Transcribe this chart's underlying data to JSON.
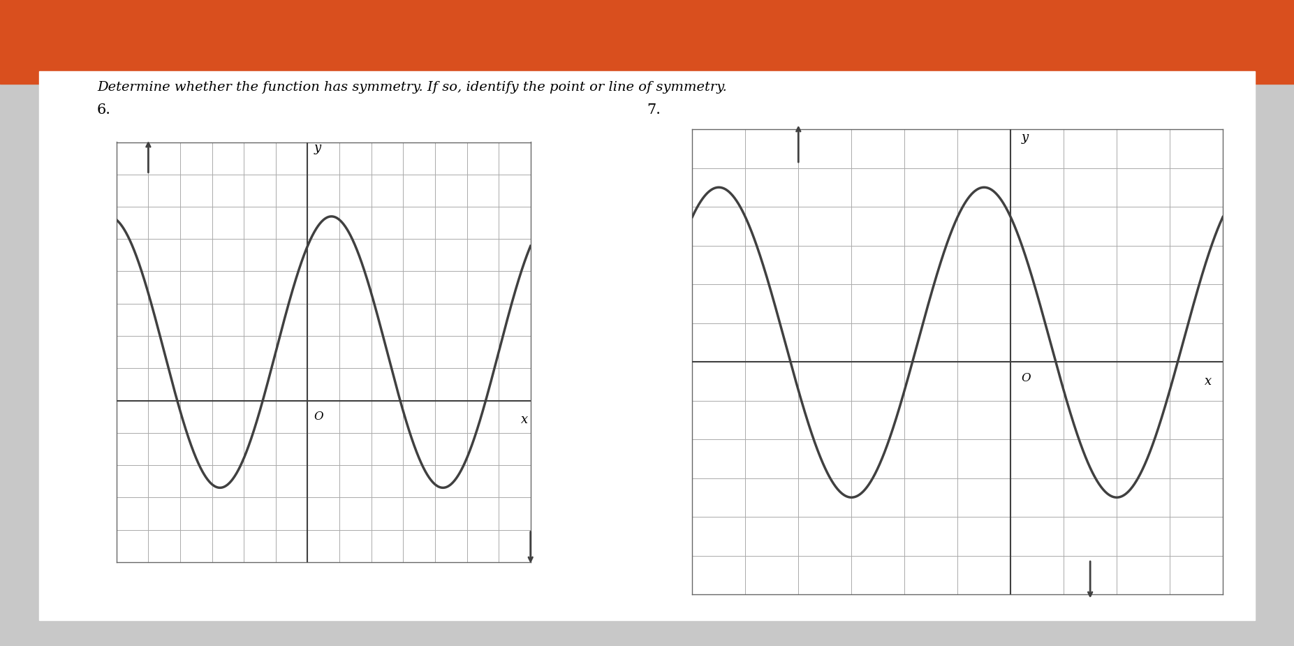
{
  "title_text": "Determine whether the function has symmetry. If so, identify the point or line of symmetry.",
  "label6": "6.",
  "label7": "7.",
  "orange_color": "#d94f1e",
  "paper_color": "#f2f2f2",
  "grid_color": "#aaaaaa",
  "curve_color": "#404040",
  "axis_color": "#404040",
  "graph1": {
    "xlim": [
      -7,
      6
    ],
    "ylim": [
      -7,
      6
    ],
    "ax_origin_x": -1,
    "ax_origin_y": -2,
    "grid_step": 1
  },
  "graph2": {
    "xlim": [
      -5,
      5
    ],
    "ylim": [
      -7,
      5
    ],
    "ax_origin_x": 1,
    "ax_origin_y": -1,
    "grid_step": 1
  }
}
